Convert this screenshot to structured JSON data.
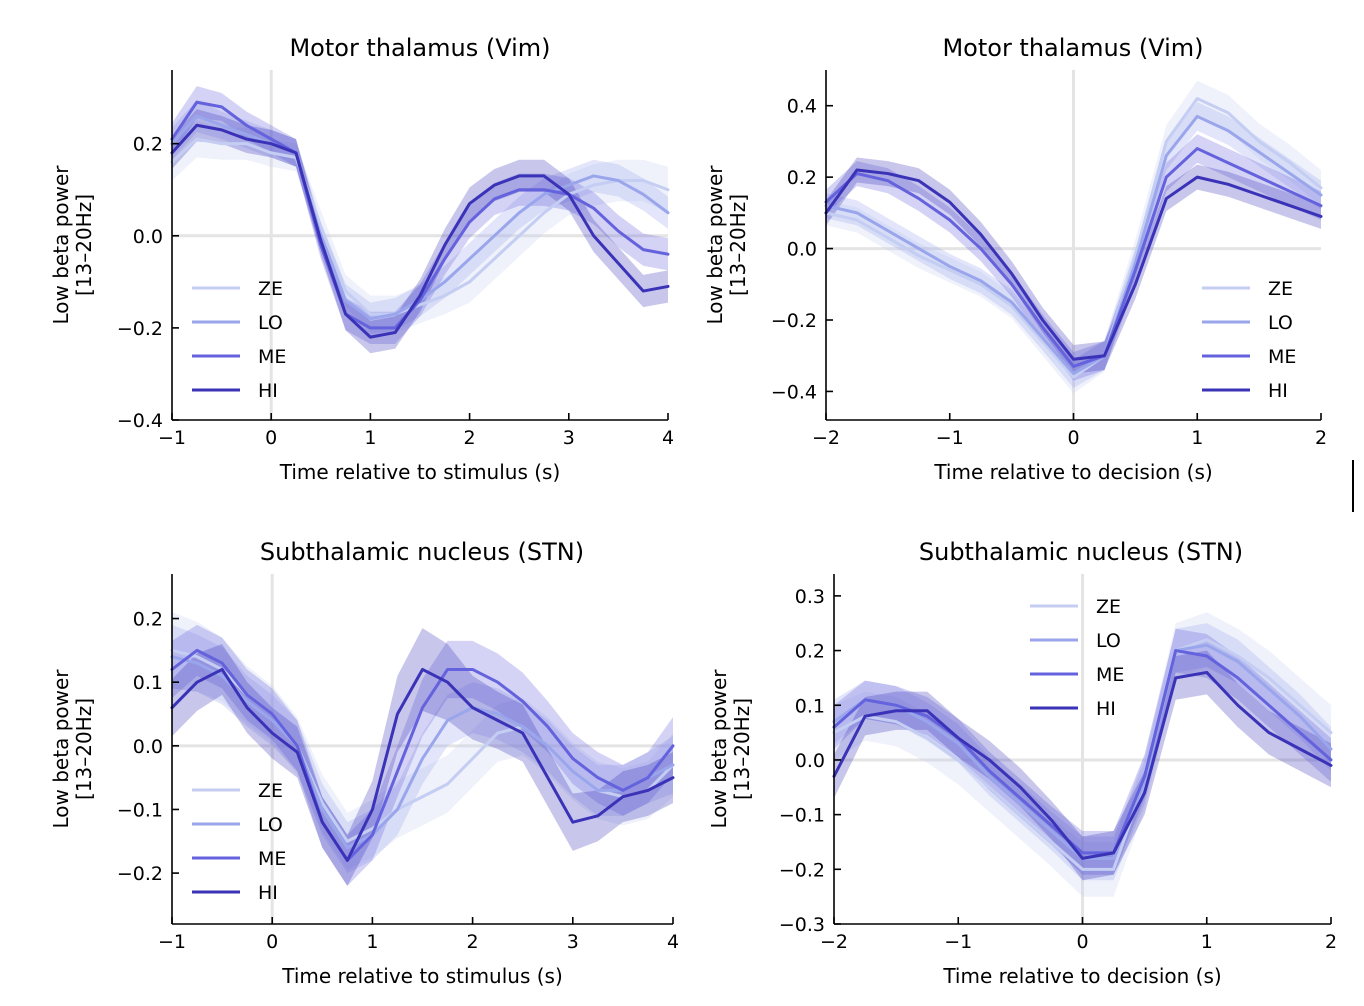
{
  "figure": {
    "colors": {
      "ZE": "#c4cdf2",
      "LO": "#9aa6ec",
      "ME": "#6462dc",
      "HI": "#3a33b7",
      "zero_line": "#e4e4e4",
      "axis": "#000000"
    },
    "legend_labels": [
      "ZE",
      "LO",
      "ME",
      "HI"
    ]
  },
  "chart_data": [
    {
      "type": "line",
      "title": "Motor thalamus (Vim)",
      "xlabel": "Time relative to stimulus (s)",
      "ylabel": [
        "Low beta power",
        "[13–20Hz]"
      ],
      "xlim": [
        -1,
        4
      ],
      "ylim": [
        -0.4,
        0.36
      ],
      "xticks": [
        -1,
        0,
        1,
        2,
        3,
        4
      ],
      "xtick_labels": [
        "−1",
        "0",
        "1",
        "2",
        "3",
        "4"
      ],
      "yticks": [
        -0.4,
        -0.2,
        0.0,
        0.2
      ],
      "ytick_labels": [
        "−0.4",
        "−0.2",
        "0.0",
        "0.2"
      ],
      "legend_position": "lower-left",
      "reference_lines": {
        "x": 0,
        "y": 0
      },
      "x": [
        -1,
        -0.75,
        -0.5,
        -0.25,
        0,
        0.25,
        0.5,
        0.75,
        1,
        1.25,
        1.5,
        1.75,
        2,
        2.25,
        2.5,
        2.75,
        3,
        3.25,
        3.5,
        3.75,
        4
      ],
      "series": [
        {
          "name": "ZE",
          "values": [
            0.16,
            0.21,
            0.2,
            0.2,
            0.18,
            0.17,
            0.02,
            -0.12,
            -0.17,
            -0.17,
            -0.15,
            -0.13,
            -0.1,
            -0.05,
            0.0,
            0.05,
            0.09,
            0.11,
            0.12,
            0.12,
            0.1
          ],
          "error": [
            0.04,
            0.04,
            0.035,
            0.035,
            0.03,
            0.03,
            0.035,
            0.035,
            0.04,
            0.04,
            0.04,
            0.04,
            0.045,
            0.045,
            0.045,
            0.045,
            0.045,
            0.045,
            0.045,
            0.045,
            0.05
          ]
        },
        {
          "name": "LO",
          "values": [
            0.2,
            0.26,
            0.24,
            0.22,
            0.2,
            0.18,
            0.0,
            -0.14,
            -0.18,
            -0.17,
            -0.14,
            -0.1,
            -0.05,
            0.0,
            0.05,
            0.09,
            0.11,
            0.13,
            0.12,
            0.09,
            0.05
          ],
          "error": [
            0.035,
            0.035,
            0.03,
            0.03,
            0.03,
            0.03,
            0.03,
            0.035,
            0.035,
            0.035,
            0.035,
            0.035,
            0.035,
            0.035,
            0.035,
            0.035,
            0.035,
            0.035,
            0.035,
            0.035,
            0.035
          ]
        },
        {
          "name": "ME",
          "values": [
            0.21,
            0.29,
            0.28,
            0.24,
            0.21,
            0.18,
            -0.02,
            -0.17,
            -0.2,
            -0.2,
            -0.14,
            -0.05,
            0.03,
            0.08,
            0.1,
            0.1,
            0.09,
            0.06,
            0.01,
            -0.03,
            -0.04
          ],
          "error": [
            0.035,
            0.035,
            0.03,
            0.03,
            0.03,
            0.03,
            0.03,
            0.035,
            0.035,
            0.035,
            0.035,
            0.035,
            0.035,
            0.035,
            0.035,
            0.035,
            0.035,
            0.035,
            0.035,
            0.035,
            0.035
          ]
        },
        {
          "name": "HI",
          "values": [
            0.18,
            0.24,
            0.23,
            0.21,
            0.2,
            0.18,
            -0.01,
            -0.17,
            -0.22,
            -0.21,
            -0.13,
            -0.02,
            0.07,
            0.11,
            0.13,
            0.13,
            0.09,
            0.0,
            -0.06,
            -0.12,
            -0.11
          ],
          "error": [
            0.035,
            0.035,
            0.03,
            0.03,
            0.03,
            0.03,
            0.03,
            0.035,
            0.035,
            0.035,
            0.035,
            0.035,
            0.035,
            0.035,
            0.035,
            0.035,
            0.035,
            0.035,
            0.035,
            0.035,
            0.035
          ]
        }
      ]
    },
    {
      "type": "line",
      "title": "Motor thalamus (Vim)",
      "xlabel": "Time relative to decision (s)",
      "ylabel": [
        "Low beta power",
        "[13–20Hz]"
      ],
      "xlim": [
        -2,
        2
      ],
      "ylim": [
        -0.48,
        0.5
      ],
      "xticks": [
        -2,
        -1,
        0,
        1,
        2
      ],
      "xtick_labels": [
        "−2",
        "−1",
        "0",
        "1",
        "2"
      ],
      "yticks": [
        -0.4,
        -0.2,
        0.0,
        0.2,
        0.4
      ],
      "ytick_labels": [
        "−0.4",
        "−0.2",
        "0.0",
        "0.2",
        "0.4"
      ],
      "legend_position": "lower-right",
      "reference_lines": {
        "x": 0,
        "y": 0
      },
      "x": [
        -2,
        -1.75,
        -1.5,
        -1.25,
        -1,
        -0.75,
        -0.5,
        -0.25,
        0,
        0.25,
        0.5,
        0.75,
        1,
        1.25,
        1.5,
        1.75,
        2
      ],
      "series": [
        {
          "name": "ZE",
          "values": [
            0.1,
            0.08,
            0.03,
            -0.02,
            -0.06,
            -0.1,
            -0.16,
            -0.26,
            -0.36,
            -0.3,
            -0.02,
            0.3,
            0.42,
            0.38,
            0.3,
            0.24,
            0.17
          ],
          "error": [
            0.035,
            0.035,
            0.035,
            0.035,
            0.035,
            0.035,
            0.035,
            0.04,
            0.045,
            0.045,
            0.045,
            0.045,
            0.05,
            0.05,
            0.05,
            0.05,
            0.05
          ]
        },
        {
          "name": "LO",
          "values": [
            0.12,
            0.1,
            0.05,
            0.0,
            -0.05,
            -0.09,
            -0.15,
            -0.25,
            -0.35,
            -0.3,
            -0.04,
            0.26,
            0.37,
            0.33,
            0.27,
            0.21,
            0.15
          ],
          "error": [
            0.035,
            0.035,
            0.035,
            0.035,
            0.035,
            0.035,
            0.035,
            0.035,
            0.04,
            0.04,
            0.04,
            0.04,
            0.04,
            0.04,
            0.04,
            0.04,
            0.04
          ]
        },
        {
          "name": "ME",
          "values": [
            0.13,
            0.21,
            0.19,
            0.14,
            0.08,
            0.0,
            -0.1,
            -0.22,
            -0.33,
            -0.3,
            -0.06,
            0.2,
            0.28,
            0.24,
            0.2,
            0.16,
            0.12
          ],
          "error": [
            0.035,
            0.035,
            0.035,
            0.035,
            0.035,
            0.035,
            0.035,
            0.035,
            0.04,
            0.04,
            0.04,
            0.04,
            0.04,
            0.04,
            0.04,
            0.04,
            0.04
          ]
        },
        {
          "name": "HI",
          "values": [
            0.1,
            0.22,
            0.21,
            0.19,
            0.13,
            0.04,
            -0.07,
            -0.2,
            -0.31,
            -0.3,
            -0.1,
            0.14,
            0.2,
            0.18,
            0.15,
            0.12,
            0.09
          ],
          "error": [
            0.035,
            0.035,
            0.035,
            0.035,
            0.035,
            0.035,
            0.035,
            0.035,
            0.04,
            0.04,
            0.04,
            0.035,
            0.035,
            0.035,
            0.035,
            0.035,
            0.035
          ]
        }
      ]
    },
    {
      "type": "line",
      "title": "Subthalamic nucleus (STN)",
      "xlabel": "Time relative to stimulus (s)",
      "ylabel": [
        "Low beta power",
        "[13–20Hz]"
      ],
      "xlim": [
        -1,
        4
      ],
      "ylim": [
        -0.28,
        0.27
      ],
      "xticks": [
        -1,
        0,
        1,
        2,
        3,
        4
      ],
      "xtick_labels": [
        "−1",
        "0",
        "1",
        "2",
        "3",
        "4"
      ],
      "yticks": [
        -0.2,
        -0.1,
        0.0,
        0.1,
        0.2
      ],
      "ytick_labels": [
        "−0.2",
        "−0.1",
        "0.0",
        "0.1",
        "0.2"
      ],
      "legend_position": "lower-left",
      "reference_lines": {
        "x": 0,
        "y": 0
      },
      "x": [
        -1,
        -0.75,
        -0.5,
        -0.25,
        0,
        0.25,
        0.5,
        0.75,
        1,
        1.25,
        1.5,
        1.75,
        2,
        2.25,
        2.5,
        2.75,
        3,
        3.25,
        3.5,
        3.75,
        4
      ],
      "series": [
        {
          "name": "ZE",
          "values": [
            0.15,
            0.14,
            0.12,
            0.08,
            0.05,
            0.0,
            -0.09,
            -0.15,
            -0.13,
            -0.1,
            -0.08,
            -0.06,
            -0.02,
            0.02,
            0.03,
            0.0,
            -0.04,
            -0.07,
            -0.08,
            -0.07,
            -0.03
          ],
          "error": [
            0.06,
            0.055,
            0.05,
            0.045,
            0.045,
            0.045,
            0.045,
            0.045,
            0.045,
            0.045,
            0.045,
            0.045,
            0.045,
            0.045,
            0.045,
            0.045,
            0.045,
            0.045,
            0.045,
            0.045,
            0.05
          ]
        },
        {
          "name": "LO",
          "values": [
            0.14,
            0.13,
            0.11,
            0.07,
            0.04,
            0.0,
            -0.1,
            -0.16,
            -0.14,
            -0.1,
            -0.02,
            0.04,
            0.06,
            0.05,
            0.03,
            0.0,
            -0.04,
            -0.07,
            -0.07,
            -0.05,
            -0.03
          ],
          "error": [
            0.05,
            0.045,
            0.045,
            0.04,
            0.04,
            0.04,
            0.04,
            0.04,
            0.04,
            0.04,
            0.04,
            0.04,
            0.04,
            0.04,
            0.04,
            0.04,
            0.04,
            0.04,
            0.04,
            0.04,
            0.045
          ]
        },
        {
          "name": "ME",
          "values": [
            0.12,
            0.15,
            0.13,
            0.08,
            0.05,
            0.0,
            -0.12,
            -0.18,
            -0.14,
            -0.04,
            0.06,
            0.12,
            0.12,
            0.1,
            0.07,
            0.03,
            -0.02,
            -0.05,
            -0.07,
            -0.05,
            0.0
          ],
          "error": [
            0.045,
            0.04,
            0.04,
            0.04,
            0.04,
            0.04,
            0.04,
            0.04,
            0.04,
            0.04,
            0.045,
            0.045,
            0.045,
            0.045,
            0.045,
            0.04,
            0.04,
            0.04,
            0.04,
            0.04,
            0.045
          ]
        },
        {
          "name": "HI",
          "values": [
            0.06,
            0.1,
            0.12,
            0.06,
            0.02,
            -0.01,
            -0.12,
            -0.18,
            -0.1,
            0.05,
            0.12,
            0.1,
            0.06,
            0.04,
            0.02,
            -0.05,
            -0.12,
            -0.11,
            -0.08,
            -0.07,
            -0.05
          ],
          "error": [
            0.045,
            0.045,
            0.04,
            0.04,
            0.04,
            0.04,
            0.04,
            0.04,
            0.045,
            0.06,
            0.065,
            0.06,
            0.05,
            0.045,
            0.045,
            0.045,
            0.045,
            0.04,
            0.04,
            0.04,
            0.04
          ]
        }
      ]
    },
    {
      "type": "line",
      "title": "Subthalamic nucleus (STN)",
      "xlabel": "Time relative to decision (s)",
      "ylabel": [
        "Low beta power",
        "[13–20Hz]"
      ],
      "xlim": [
        -2,
        2
      ],
      "ylim": [
        -0.3,
        0.34
      ],
      "xticks": [
        -2,
        -1,
        0,
        1,
        2
      ],
      "xtick_labels": [
        "−2",
        "−1",
        "0",
        "1",
        "2"
      ],
      "yticks": [
        -0.3,
        -0.2,
        -0.1,
        0.0,
        0.1,
        0.2,
        0.3
      ],
      "ytick_labels": [
        "−0.3",
        "−0.2",
        "−0.1",
        "0.0",
        "0.1",
        "0.2",
        "0.3"
      ],
      "legend_position": "upper-center",
      "reference_lines": {
        "x": 0,
        "y": 0
      },
      "x": [
        -2,
        -1.75,
        -1.5,
        -1.25,
        -1,
        -0.75,
        -0.5,
        -0.25,
        0,
        0.25,
        0.5,
        0.75,
        1,
        1.25,
        1.5,
        1.75,
        2
      ],
      "series": [
        {
          "name": "ZE",
          "values": [
            0.05,
            0.08,
            0.07,
            0.04,
            0.0,
            -0.05,
            -0.1,
            -0.15,
            -0.2,
            -0.2,
            -0.04,
            0.2,
            0.22,
            0.19,
            0.15,
            0.1,
            0.05
          ],
          "error": [
            0.05,
            0.045,
            0.045,
            0.045,
            0.045,
            0.045,
            0.045,
            0.045,
            0.05,
            0.05,
            0.05,
            0.05,
            0.05,
            0.05,
            0.05,
            0.05,
            0.05
          ]
        },
        {
          "name": "LO",
          "values": [
            0.07,
            0.11,
            0.1,
            0.07,
            0.03,
            -0.03,
            -0.08,
            -0.13,
            -0.18,
            -0.18,
            -0.04,
            0.2,
            0.21,
            0.18,
            0.13,
            0.08,
            0.02
          ],
          "error": [
            0.04,
            0.035,
            0.035,
            0.035,
            0.035,
            0.035,
            0.035,
            0.035,
            0.04,
            0.04,
            0.04,
            0.04,
            0.04,
            0.04,
            0.04,
            0.04,
            0.04
          ]
        },
        {
          "name": "ME",
          "values": [
            0.06,
            0.11,
            0.1,
            0.08,
            0.04,
            -0.02,
            -0.07,
            -0.12,
            -0.17,
            -0.17,
            -0.03,
            0.2,
            0.19,
            0.15,
            0.1,
            0.05,
            0.0
          ],
          "error": [
            0.04,
            0.035,
            0.035,
            0.035,
            0.035,
            0.035,
            0.035,
            0.035,
            0.04,
            0.04,
            0.04,
            0.04,
            0.04,
            0.04,
            0.04,
            0.04,
            0.04
          ]
        },
        {
          "name": "HI",
          "values": [
            -0.03,
            0.08,
            0.09,
            0.09,
            0.04,
            0.0,
            -0.05,
            -0.11,
            -0.18,
            -0.17,
            -0.06,
            0.15,
            0.16,
            0.1,
            0.05,
            0.02,
            -0.01
          ],
          "error": [
            0.04,
            0.035,
            0.035,
            0.035,
            0.035,
            0.035,
            0.035,
            0.035,
            0.04,
            0.04,
            0.04,
            0.04,
            0.04,
            0.04,
            0.04,
            0.04,
            0.04
          ]
        }
      ]
    }
  ]
}
